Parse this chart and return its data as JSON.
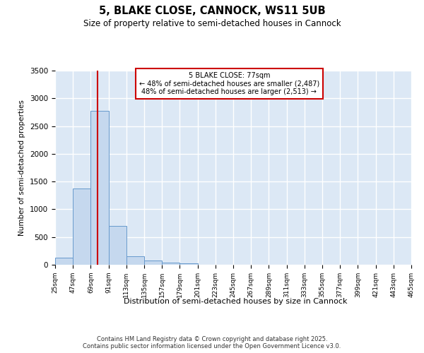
{
  "title": "5, BLAKE CLOSE, CANNOCK, WS11 5UB",
  "subtitle": "Size of property relative to semi-detached houses in Cannock",
  "xlabel": "Distribution of semi-detached houses by size in Cannock",
  "ylabel": "Number of semi-detached properties",
  "bin_labels": [
    "25sqm",
    "47sqm",
    "69sqm",
    "91sqm",
    "113sqm",
    "135sqm",
    "157sqm",
    "179sqm",
    "201sqm",
    "223sqm",
    "245sqm",
    "267sqm",
    "289sqm",
    "311sqm",
    "333sqm",
    "355sqm",
    "377sqm",
    "399sqm",
    "421sqm",
    "443sqm",
    "465sqm"
  ],
  "bin_edges": [
    25,
    47,
    69,
    91,
    113,
    135,
    157,
    179,
    201,
    223,
    245,
    267,
    289,
    311,
    333,
    355,
    377,
    399,
    421,
    443,
    465
  ],
  "bar_heights": [
    130,
    1380,
    2780,
    700,
    150,
    80,
    40,
    30,
    0,
    0,
    0,
    0,
    0,
    0,
    0,
    0,
    0,
    0,
    0,
    0
  ],
  "bar_color": "#c5d8ee",
  "bar_edge_color": "#6699cc",
  "property_size": 77,
  "vline_color": "#cc0000",
  "annotation_text_line1": "5 BLAKE CLOSE: 77sqm",
  "annotation_text_line2": "← 48% of semi-detached houses are smaller (2,487)",
  "annotation_text_line3": "48% of semi-detached houses are larger (2,513) →",
  "annotation_box_edgecolor": "#cc0000",
  "background_color": "#dce8f5",
  "ylim": [
    0,
    3500
  ],
  "yticks": [
    0,
    500,
    1000,
    1500,
    2000,
    2500,
    3000,
    3500
  ],
  "footer_line1": "Contains HM Land Registry data © Crown copyright and database right 2025.",
  "footer_line2": "Contains public sector information licensed under the Open Government Licence v3.0."
}
